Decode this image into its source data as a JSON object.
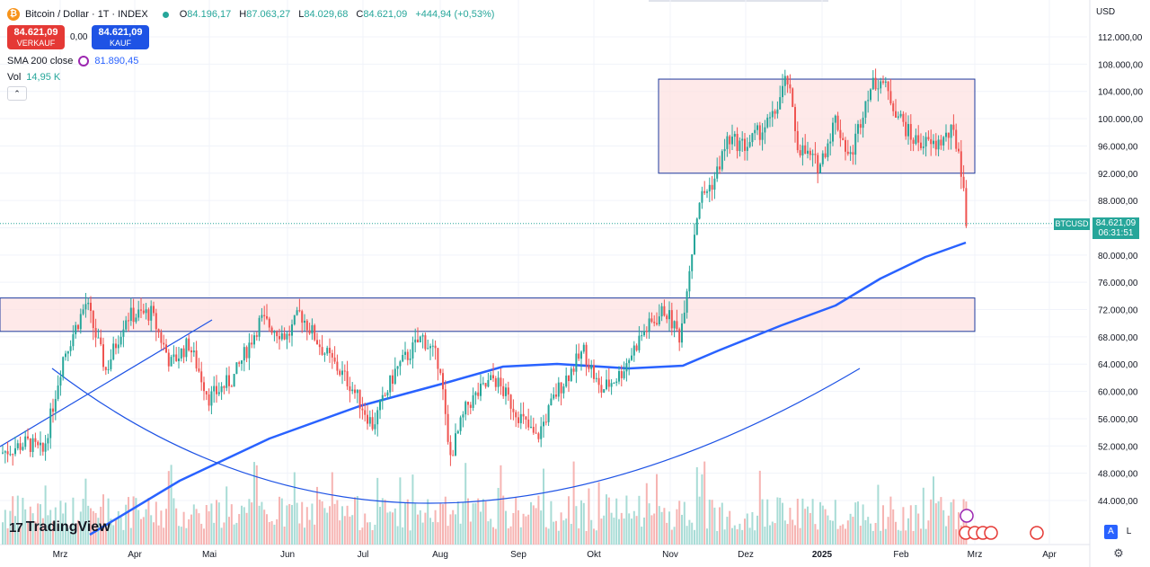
{
  "header": {
    "symbol_title": "Bitcoin / Dollar · 1T · INDEX",
    "coin_icon": "bitcoin-icon",
    "ohlc": [
      {
        "key": "O",
        "value": "84.196,17"
      },
      {
        "key": "H",
        "value": "87.063,27"
      },
      {
        "key": "L",
        "value": "84.029,68"
      },
      {
        "key": "C",
        "value": "84.621,09"
      }
    ],
    "change": "+444,94 (+0,53%)"
  },
  "trade": {
    "sell_price": "84.621,09",
    "sell_label": "VERKAUF",
    "spread": "0,00",
    "buy_price": "84.621,09",
    "buy_label": "KAUF"
  },
  "indicators": {
    "sma_label": "SMA 200 close",
    "sma_value": "81.890,45",
    "vol_label": "Vol",
    "vol_value": "14,95 K",
    "collapse_glyph": "⌃"
  },
  "price_scale": {
    "currency": "USD",
    "last_symbol": "BTCUSD",
    "last_price": "84.621,09",
    "countdown": "06:31:51"
  },
  "controls": {
    "auto_label": "A",
    "log_label": "L",
    "settings_icon": "gear-icon"
  },
  "branding": {
    "logo_text": "TradingView",
    "logo_mark": "17"
  },
  "colors": {
    "up": "#26a69a",
    "down": "#ef5350",
    "sma": "#2962ff",
    "zone_fill": "#fde1e1",
    "zone_border": "#1e3a9e",
    "trendline": "#1e53e5"
  },
  "chart_data": {
    "type": "candlestick",
    "x_labels": [
      "Mrz",
      "Apr",
      "Mai",
      "Jun",
      "Jul",
      "Aug",
      "Sep",
      "Okt",
      "Nov",
      "Dez",
      "2025",
      "Feb",
      "Mrz",
      "Apr"
    ],
    "y_ticks": [
      "112.000,00",
      "108.000,00",
      "104.000,00",
      "100.000,00",
      "96.000,00",
      "92.000,00",
      "88.000,00",
      "84.000,00",
      "80.000,00",
      "76.000,00",
      "72.000,00",
      "68.000,00",
      "64.000,00",
      "60.000,00",
      "56.000,00",
      "52.000,00",
      "48.000,00",
      "44.000,00"
    ],
    "y_range": [
      42000,
      115000
    ],
    "y_scale": "linear",
    "grid": true,
    "zones": [
      {
        "from_label": "Mrz",
        "to_label": "Mrz",
        "low": 68800,
        "high": 73700
      },
      {
        "from_label": "Nov",
        "to_label": "Mrz",
        "low": 92000,
        "high": 105800
      }
    ],
    "series_close_monthly": [
      {
        "label": "Mrz",
        "close": 64000
      },
      {
        "label": "Apr",
        "close": 70000
      },
      {
        "label": "Mai",
        "close": 62000
      },
      {
        "label": "Jun",
        "close": 70000
      },
      {
        "label": "Jul",
        "close": 58000
      },
      {
        "label": "Aug",
        "close": 64000
      },
      {
        "label": "Sep",
        "close": 57500
      },
      {
        "label": "Okt",
        "close": 64000
      },
      {
        "label": "Nov",
        "close": 70000
      },
      {
        "label": "Dez",
        "close": 97000
      },
      {
        "label": "2025",
        "close": 94000
      },
      {
        "label": "Feb",
        "close": 100000
      },
      {
        "label": "Mrz",
        "close": 84621
      }
    ]
  }
}
